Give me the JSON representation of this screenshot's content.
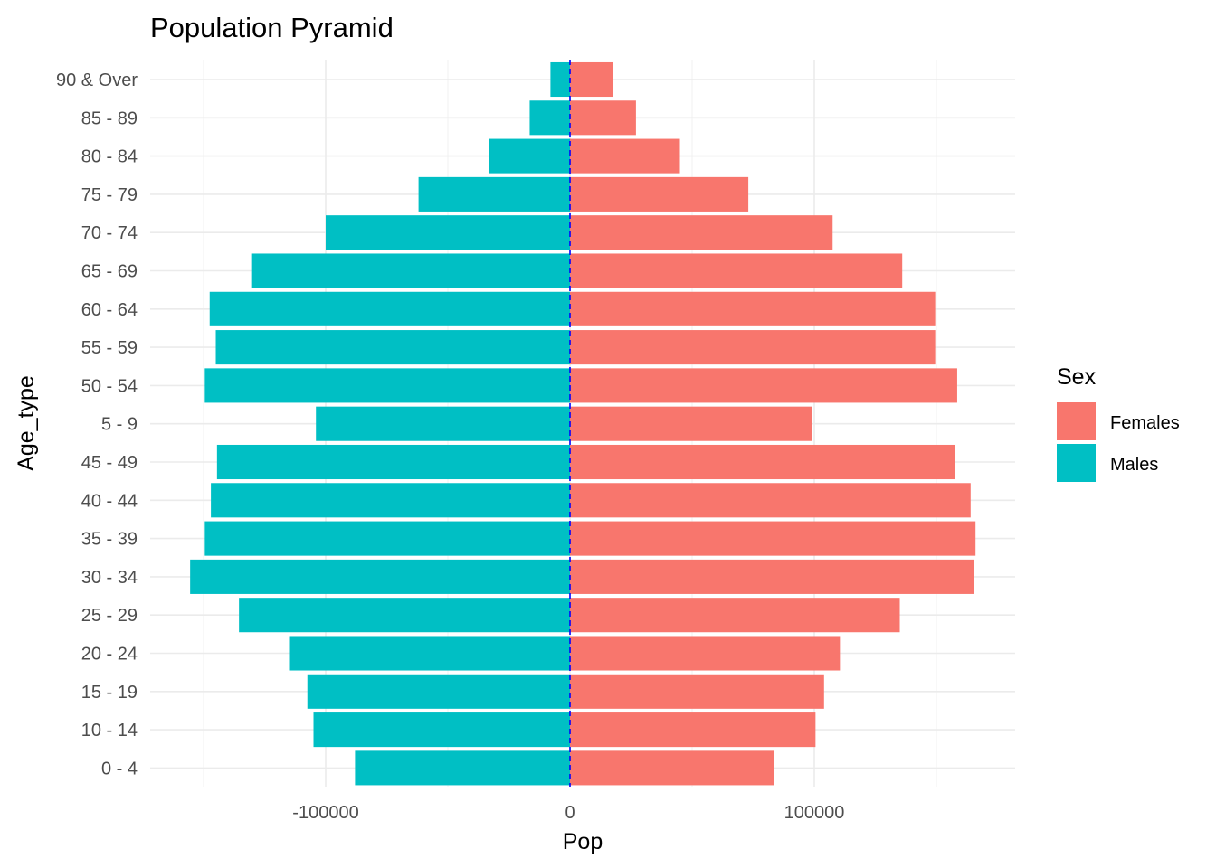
{
  "chart_data": {
    "type": "bar",
    "orientation": "horizontal",
    "title": "Population Pyramid",
    "xlabel": "Pop",
    "ylabel": "Age_type",
    "xlim": [
      -155000,
      182000
    ],
    "x_ticks": [
      -100000,
      0,
      100000
    ],
    "x_tick_labels": [
      "-100000",
      "0",
      "100000"
    ],
    "grid": true,
    "reference_line": {
      "x": 0,
      "style": "dashed",
      "color": "#0000ff"
    },
    "categories": [
      "0 - 4",
      "10 - 14",
      "15 - 19",
      "20 - 24",
      "25 - 29",
      "30 - 34",
      "35 - 39",
      "40 - 44",
      "45 - 49",
      "5 - 9",
      "50 - 54",
      "55 - 59",
      "60 - 64",
      "65 - 69",
      "70 - 74",
      "75 - 79",
      "80 - 84",
      "85 - 89",
      "90 & Over"
    ],
    "series": [
      {
        "name": "Females",
        "color": "#F8766D",
        "values": [
          83500,
          100500,
          104000,
          110500,
          135000,
          165500,
          166000,
          164000,
          157500,
          99000,
          158500,
          149500,
          149500,
          136000,
          107500,
          73000,
          45000,
          27000,
          17500
        ]
      },
      {
        "name": "Males",
        "color": "#00BFC4",
        "values": [
          -88000,
          -105000,
          -107500,
          -115000,
          -135500,
          -155500,
          -149500,
          -147000,
          -144500,
          -104000,
          -149500,
          -145000,
          -147500,
          -130500,
          -100000,
          -62000,
          -33000,
          -16500,
          -8000
        ]
      }
    ],
    "legend": {
      "title": "Sex",
      "position": "right",
      "entries": [
        "Females",
        "Males"
      ]
    }
  }
}
